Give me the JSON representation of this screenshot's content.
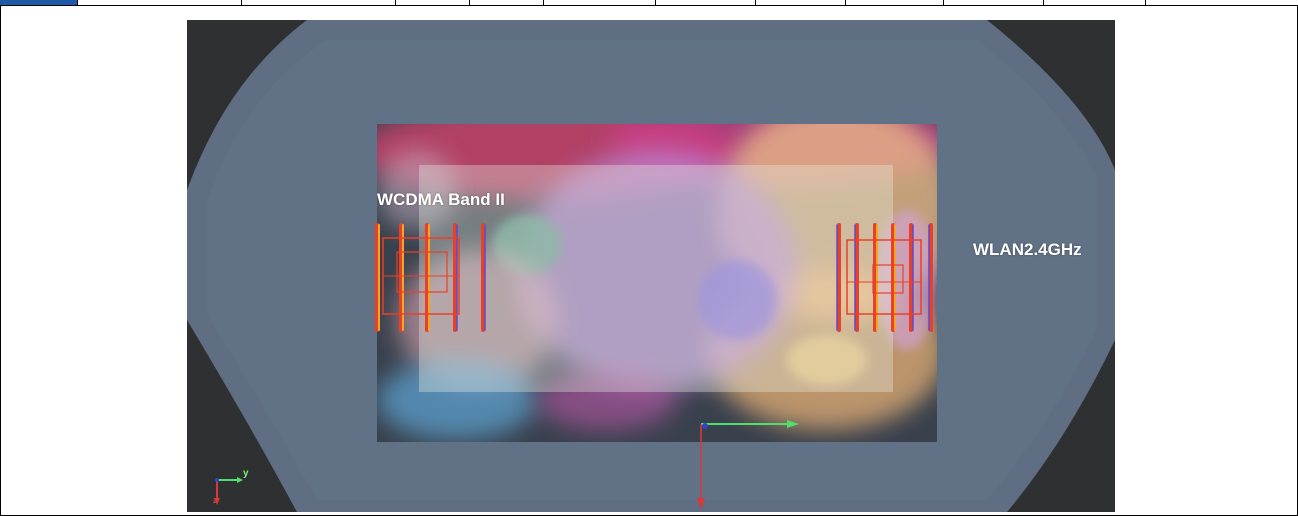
{
  "simulation_view": {
    "labels": {
      "left_antenna": "WCDMA Band II",
      "right_antenna": "WLAN2.4GHz"
    },
    "axis_triad": {
      "y_label": "y",
      "z_label": "z"
    },
    "colors": {
      "phantom": "#5f6e82",
      "board": "#39414d",
      "antenna_red": "#e8412a",
      "antenna_orange": "#f6a623",
      "axis_green": "#4fe06b",
      "axis_red": "#d8393b"
    }
  }
}
